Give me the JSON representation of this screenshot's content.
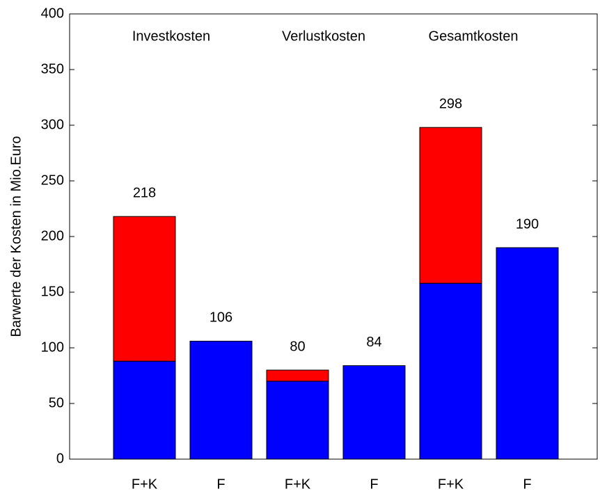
{
  "chart_data": {
    "type": "stacked_bar",
    "ylabel": "Barwerte der Kosten in Mio.Euro",
    "categories": [
      "F+K",
      "F",
      "F+K",
      "F",
      "F+K",
      "F"
    ],
    "series": [
      {
        "color": "#0000ff",
        "values": [
          88,
          106,
          70,
          84,
          158,
          190
        ]
      },
      {
        "color": "#ff0000",
        "values": [
          130,
          0,
          10,
          0,
          140,
          0
        ]
      }
    ],
    "totals": [
      218,
      106,
      80,
      84,
      298,
      190
    ],
    "annotations": [
      "Investkosten",
      "Verlustkosten",
      "Gesamtkosten"
    ],
    "ylim": [
      0,
      400
    ],
    "yticks": [
      0,
      50,
      100,
      150,
      200,
      250,
      300,
      350,
      400
    ]
  }
}
